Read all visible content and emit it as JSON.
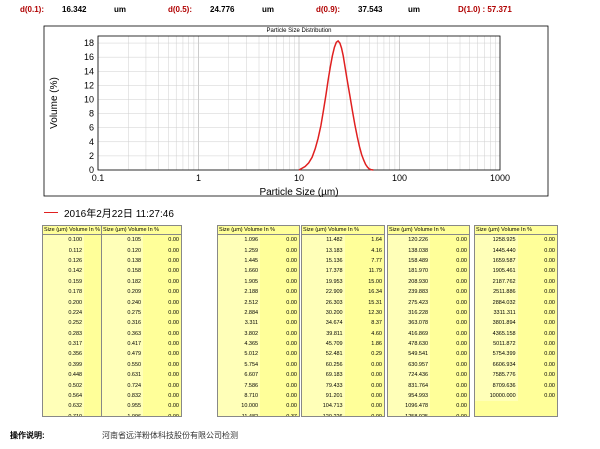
{
  "stats": {
    "d01_label": "d(0.1):",
    "d01_value": "16.342",
    "d01_unit": "um",
    "d05_label": "d(0.5):",
    "d05_value": "24.776",
    "d05_unit": "um",
    "d09_label": "d(0.9):",
    "d09_value": "37.543",
    "d09_unit": "um",
    "d10_text": "D(1.0) : 57.371"
  },
  "chart_data": {
    "type": "line",
    "title": "Particle Size Distribution",
    "xlabel": "Particle Size (µm)",
    "ylabel": "Volume (%)",
    "x_scale": "log",
    "xlim": [
      0.1,
      1000
    ],
    "ylim": [
      0,
      19
    ],
    "x_ticks": [
      "0.1",
      "1",
      "10",
      "100",
      "1000"
    ],
    "y_ticks": [
      "0",
      "2",
      "4",
      "6",
      "8",
      "10",
      "12",
      "14",
      "16",
      "18"
    ],
    "grid": true,
    "line_color": "#e02020",
    "series": [
      {
        "x": [
          10.0,
          11.5,
          12.5,
          13.5,
          14.5,
          15.5,
          16.5,
          17.5,
          18.5,
          19.5,
          20.5,
          21.5,
          22.5,
          23.5,
          24.5,
          25.5,
          26.5,
          27.5,
          28.5,
          30.0,
          32.0,
          34.0,
          36.0,
          38.0,
          40.0,
          42.0,
          44.0,
          46.0,
          48.0,
          50.0,
          52.0,
          55.0
        ],
        "y": [
          0,
          0.5,
          1.0,
          1.8,
          3.0,
          4.5,
          6.3,
          8.4,
          10.6,
          12.7,
          14.6,
          16.2,
          17.4,
          18.1,
          18.3,
          18.0,
          17.3,
          16.2,
          14.9,
          12.9,
          10.6,
          8.4,
          6.4,
          4.7,
          3.3,
          2.2,
          1.4,
          0.8,
          0.4,
          0.15,
          0.05,
          0
        ]
      }
    ]
  },
  "legend": {
    "timestamp": "2016年2月22日 11:27:46"
  },
  "tables": [
    {
      "header": "Size (µm) Volume In %",
      "rows": [
        [
          "0.100",
          ""
        ],
        [
          "0.112",
          ""
        ],
        [
          "0.126",
          ""
        ],
        [
          "0.142",
          ""
        ],
        [
          "0.159",
          ""
        ],
        [
          "0.178",
          ""
        ],
        [
          "0.200",
          ""
        ],
        [
          "0.224",
          ""
        ],
        [
          "0.252",
          ""
        ],
        [
          "0.283",
          ""
        ],
        [
          "0.317",
          ""
        ],
        [
          "0.356",
          ""
        ],
        [
          "0.399",
          ""
        ],
        [
          "0.448",
          ""
        ],
        [
          "0.502",
          ""
        ],
        [
          "0.564",
          ""
        ],
        [
          "0.632",
          ""
        ],
        [
          "0.710",
          ""
        ],
        [
          "0.796",
          ""
        ],
        [
          "0.893",
          ""
        ],
        [
          "1.002",
          ""
        ]
      ]
    },
    {
      "header": "Size (µm) Volume In %",
      "rows": [
        [
          "0.105",
          "0.00"
        ],
        [
          "0.120",
          "0.00"
        ],
        [
          "0.138",
          "0.00"
        ],
        [
          "0.158",
          "0.00"
        ],
        [
          "0.182",
          "0.00"
        ],
        [
          "0.209",
          "0.00"
        ],
        [
          "0.240",
          "0.00"
        ],
        [
          "0.275",
          "0.00"
        ],
        [
          "0.316",
          "0.00"
        ],
        [
          "0.363",
          "0.00"
        ],
        [
          "0.417",
          "0.00"
        ],
        [
          "0.479",
          "0.00"
        ],
        [
          "0.550",
          "0.00"
        ],
        [
          "0.631",
          "0.00"
        ],
        [
          "0.724",
          "0.00"
        ],
        [
          "0.832",
          "0.00"
        ],
        [
          "0.955",
          "0.00"
        ],
        [
          "1.096",
          "0.00"
        ]
      ]
    },
    {
      "header": "Size (µm) Volume In %",
      "rows": [
        [
          "1.096",
          "0.00"
        ],
        [
          "1.259",
          "0.00"
        ],
        [
          "1.445",
          "0.00"
        ],
        [
          "1.660",
          "0.00"
        ],
        [
          "1.905",
          "0.00"
        ],
        [
          "2.188",
          "0.00"
        ],
        [
          "2.512",
          "0.00"
        ],
        [
          "2.884",
          "0.00"
        ],
        [
          "3.311",
          "0.00"
        ],
        [
          "3.802",
          "0.00"
        ],
        [
          "4.365",
          "0.00"
        ],
        [
          "5.012",
          "0.00"
        ],
        [
          "5.754",
          "0.00"
        ],
        [
          "6.607",
          "0.00"
        ],
        [
          "7.586",
          "0.00"
        ],
        [
          "8.710",
          "0.00"
        ],
        [
          "10.000",
          "0.00"
        ],
        [
          "11.482",
          "0.37"
        ]
      ]
    },
    {
      "header": "Size (µm) Volume In %",
      "rows": [
        [
          "11.482",
          "1.64"
        ],
        [
          "13.183",
          "4.16"
        ],
        [
          "15.136",
          "7.77"
        ],
        [
          "17.378",
          "11.79"
        ],
        [
          "19.953",
          "15.00"
        ],
        [
          "22.909",
          "16.34"
        ],
        [
          "26.303",
          "15.31"
        ],
        [
          "30.200",
          "12.30"
        ],
        [
          "34.674",
          "8.37"
        ],
        [
          "39.811",
          "4.60"
        ],
        [
          "45.709",
          "1.86"
        ],
        [
          "52.481",
          "0.29"
        ],
        [
          "60.256",
          "0.00"
        ],
        [
          "69.183",
          "0.00"
        ],
        [
          "79.433",
          "0.00"
        ],
        [
          "91.201",
          "0.00"
        ],
        [
          "104.713",
          "0.00"
        ],
        [
          "120.226",
          "0.00"
        ]
      ]
    },
    {
      "header": "Size (µm) Volume In %",
      "rows": [
        [
          "120.226",
          "0.00"
        ],
        [
          "138.038",
          "0.00"
        ],
        [
          "158.489",
          "0.00"
        ],
        [
          "181.970",
          "0.00"
        ],
        [
          "208.930",
          "0.00"
        ],
        [
          "239.883",
          "0.00"
        ],
        [
          "275.423",
          "0.00"
        ],
        [
          "316.228",
          "0.00"
        ],
        [
          "363.078",
          "0.00"
        ],
        [
          "416.869",
          "0.00"
        ],
        [
          "478.630",
          "0.00"
        ],
        [
          "549.541",
          "0.00"
        ],
        [
          "630.957",
          "0.00"
        ],
        [
          "724.436",
          "0.00"
        ],
        [
          "831.764",
          "0.00"
        ],
        [
          "954.993",
          "0.00"
        ],
        [
          "1096.478",
          "0.00"
        ],
        [
          "1258.925",
          "0.00"
        ]
      ]
    },
    {
      "header": "Size (µm) Volume In %",
      "rows": [
        [
          "1258.925",
          "0.00"
        ],
        [
          "1445.440",
          "0.00"
        ],
        [
          "1659.587",
          "0.00"
        ],
        [
          "1905.461",
          "0.00"
        ],
        [
          "2187.762",
          "0.00"
        ],
        [
          "2511.886",
          "0.00"
        ],
        [
          "2884.032",
          "0.00"
        ],
        [
          "3311.311",
          "0.00"
        ],
        [
          "3801.894",
          "0.00"
        ],
        [
          "4365.158",
          "0.00"
        ],
        [
          "5011.872",
          "0.00"
        ],
        [
          "5754.399",
          "0.00"
        ],
        [
          "6606.934",
          "0.00"
        ],
        [
          "7585.776",
          "0.00"
        ],
        [
          "8709.636",
          "0.00"
        ],
        [
          "10000.000",
          "0.00"
        ]
      ]
    }
  ],
  "footer": {
    "label": "操作说明:",
    "value": "河南省远洋粉体科技股份有限公司检测"
  }
}
